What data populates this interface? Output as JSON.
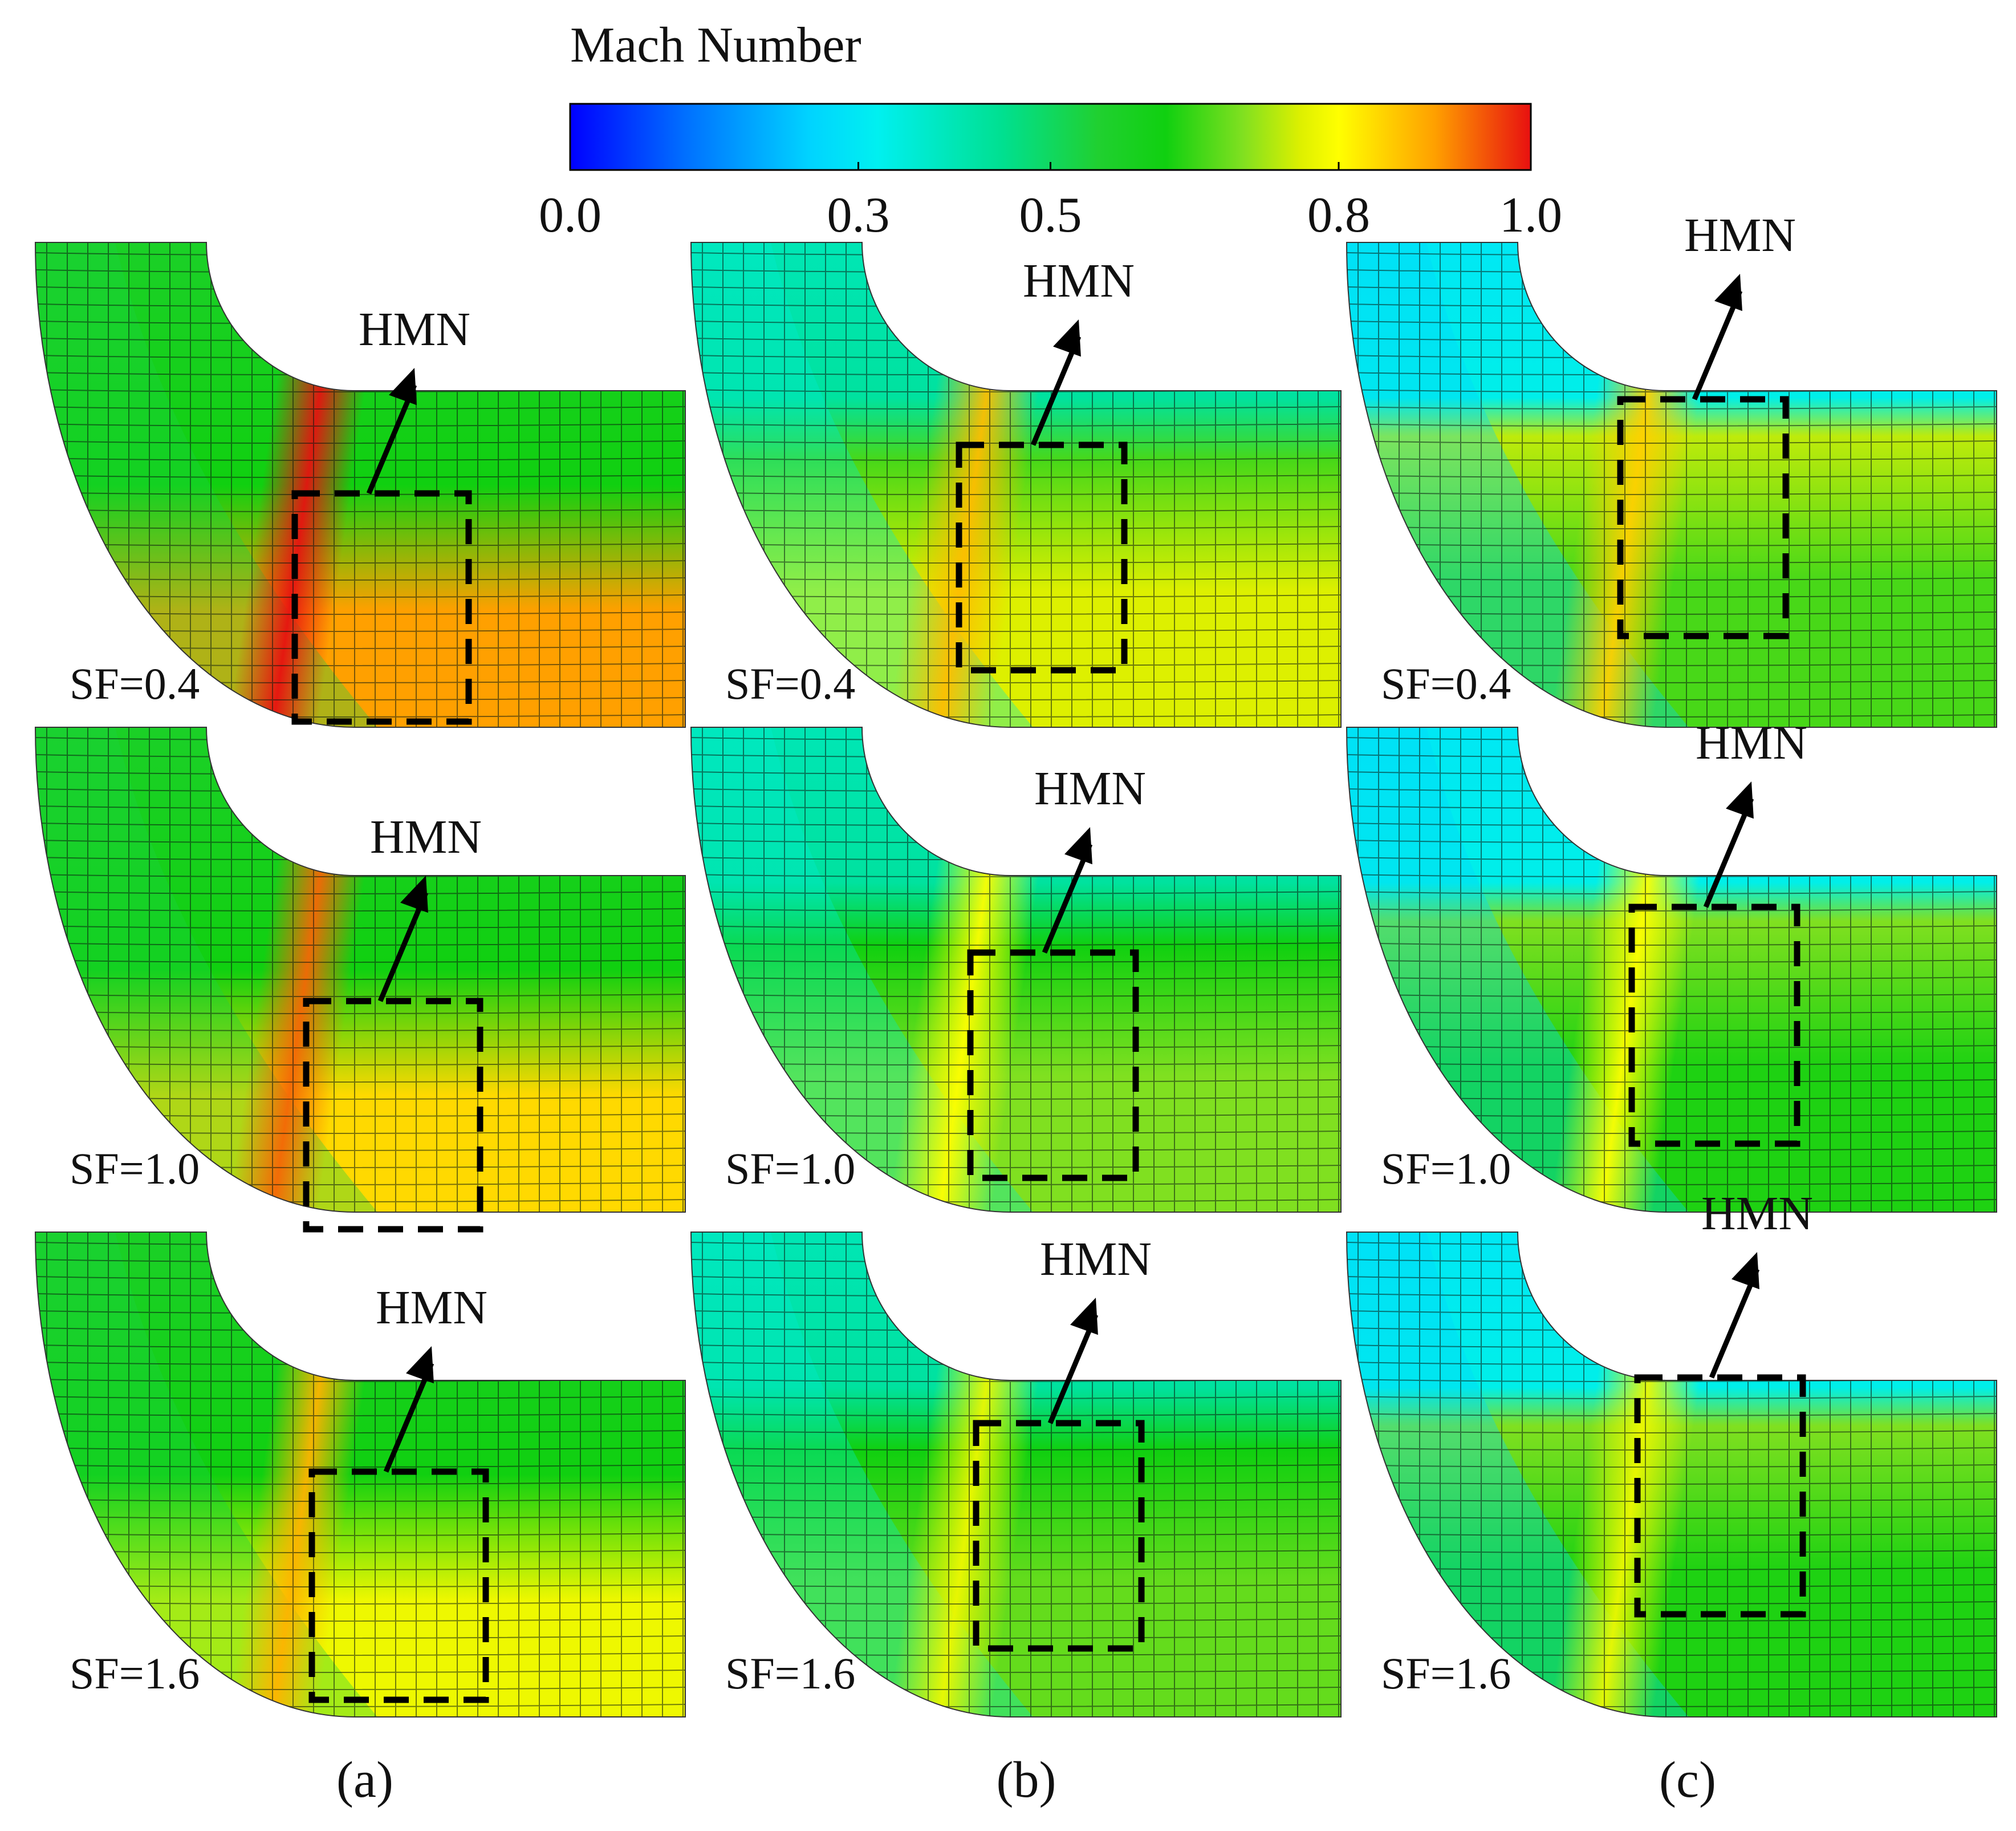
{
  "colorbar": {
    "title": "Mach Number",
    "ticks": [
      {
        "value": 0.0,
        "label": "0.0"
      },
      {
        "value": 0.3,
        "label": "0.3"
      },
      {
        "value": 0.5,
        "label": "0.5"
      },
      {
        "value": 0.8,
        "label": "0.8"
      },
      {
        "value": 1.0,
        "label": "1.0"
      }
    ],
    "range": [
      0.0,
      1.0
    ],
    "stops": [
      {
        "at": 0.0,
        "color": "#0000ff"
      },
      {
        "at": 0.12,
        "color": "#0070ff"
      },
      {
        "at": 0.25,
        "color": "#00d4ff"
      },
      {
        "at": 0.32,
        "color": "#00f0f0"
      },
      {
        "at": 0.45,
        "color": "#00e090"
      },
      {
        "at": 0.55,
        "color": "#20d030"
      },
      {
        "at": 0.62,
        "color": "#10d010"
      },
      {
        "at": 0.7,
        "color": "#80e020"
      },
      {
        "at": 0.76,
        "color": "#ddf000"
      },
      {
        "at": 0.8,
        "color": "#ffff00"
      },
      {
        "at": 0.9,
        "color": "#ffa000"
      },
      {
        "at": 1.0,
        "color": "#e81010"
      }
    ]
  },
  "columns": [
    {
      "label": "(a)"
    },
    {
      "label": "(b)"
    },
    {
      "label": "(c)"
    }
  ],
  "panels": [
    {
      "column": 0,
      "row": 0,
      "sf": "SF=0.4",
      "annotation": "HMN",
      "mach": {
        "inlet": 0.57,
        "outlet_upper": 0.62,
        "outlet_lower": 0.9,
        "peak": 1.0
      }
    },
    {
      "column": 0,
      "row": 1,
      "sf": "SF=1.0",
      "annotation": "HMN",
      "mach": {
        "inlet": 0.57,
        "outlet_upper": 0.62,
        "outlet_lower": 0.84,
        "peak": 0.94
      }
    },
    {
      "column": 0,
      "row": 2,
      "sf": "SF=1.6",
      "annotation": "HMN",
      "mach": {
        "inlet": 0.57,
        "outlet_upper": 0.62,
        "outlet_lower": 0.78,
        "peak": 0.88
      }
    },
    {
      "column": 1,
      "row": 0,
      "sf": "SF=0.4",
      "annotation": "HMN",
      "mach": {
        "inlet": 0.4,
        "outlet_upper": 0.66,
        "outlet_lower": 0.76,
        "peak": 0.87
      }
    },
    {
      "column": 1,
      "row": 1,
      "sf": "SF=1.0",
      "annotation": "HMN",
      "mach": {
        "inlet": 0.4,
        "outlet_upper": 0.62,
        "outlet_lower": 0.7,
        "peak": 0.8
      }
    },
    {
      "column": 1,
      "row": 2,
      "sf": "SF=1.6",
      "annotation": "HMN",
      "mach": {
        "inlet": 0.4,
        "outlet_upper": 0.62,
        "outlet_lower": 0.68,
        "peak": 0.78
      }
    },
    {
      "column": 2,
      "row": 0,
      "sf": "SF=0.4",
      "annotation": "HMN",
      "mach": {
        "inlet": 0.3,
        "outlet_upper": 0.74,
        "outlet_lower": 0.66,
        "peak": 0.85
      }
    },
    {
      "column": 2,
      "row": 1,
      "sf": "SF=1.0",
      "annotation": "HMN",
      "mach": {
        "inlet": 0.3,
        "outlet_upper": 0.7,
        "outlet_lower": 0.63,
        "peak": 0.8
      }
    },
    {
      "column": 2,
      "row": 2,
      "sf": "SF=1.6",
      "annotation": "HMN",
      "mach": {
        "inlet": 0.3,
        "outlet_upper": 0.7,
        "outlet_lower": 0.63,
        "peak": 0.78
      }
    }
  ]
}
